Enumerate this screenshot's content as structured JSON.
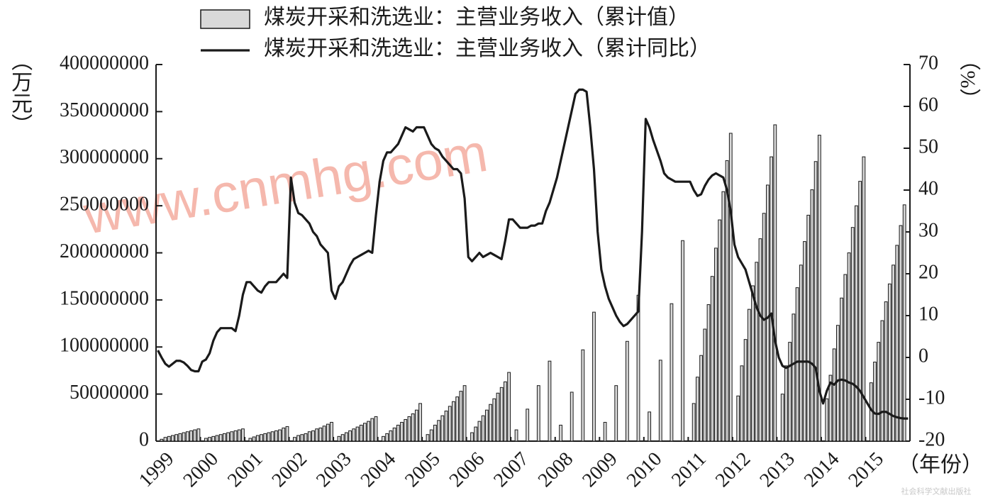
{
  "chart_data": {
    "type": "combo",
    "legend_labels_note_free": null,
    "categories": [
      "1999",
      null,
      null,
      null,
      null,
      null,
      null,
      null,
      null,
      null,
      null,
      null,
      "2000",
      null,
      null,
      null,
      null,
      null,
      null,
      null,
      null,
      null,
      null,
      null,
      "2001",
      null,
      null,
      null,
      null,
      null,
      null,
      null,
      null,
      null,
      null,
      null,
      "2002",
      null,
      null,
      null,
      null,
      null,
      null,
      null,
      null,
      null,
      null,
      null,
      "2003",
      null,
      null,
      null,
      null,
      null,
      null,
      null,
      null,
      null,
      null,
      null,
      "2004",
      null,
      null,
      null,
      null,
      null,
      null,
      null,
      null,
      null,
      null,
      null,
      "2005",
      null,
      null,
      null,
      null,
      null,
      null,
      null,
      null,
      null,
      null,
      null,
      "2006",
      null,
      null,
      null,
      null,
      null,
      null,
      null,
      null,
      null,
      null,
      null,
      "2007",
      null,
      null,
      null,
      null,
      null,
      null,
      null,
      null,
      null,
      null,
      null,
      "2008",
      null,
      null,
      null,
      null,
      null,
      null,
      null,
      null,
      null,
      null,
      null,
      "2009",
      null,
      null,
      null,
      null,
      null,
      null,
      null,
      null,
      null,
      null,
      null,
      "2010",
      null,
      null,
      null,
      null,
      null,
      null,
      null,
      null,
      null,
      null,
      null,
      "2011",
      null,
      null,
      null,
      null,
      null,
      null,
      null,
      null,
      null,
      null,
      null,
      "2012",
      null,
      null,
      null,
      null,
      null,
      null,
      null,
      null,
      null,
      null,
      null,
      "2013",
      null,
      null,
      null,
      null,
      null,
      null,
      null,
      null,
      null,
      null,
      null,
      "2014",
      null,
      null,
      null,
      null,
      null,
      null,
      null,
      null,
      null,
      null,
      null,
      "2015",
      null,
      null,
      null,
      null,
      null,
      null,
      null,
      null,
      null,
      null,
      null
    ],
    "series": [
      {
        "name": "煤炭开采和洗选业：主营业务收入（累计值）",
        "type": "bar",
        "color": "#d9d9d9",
        "values": [
          null,
          2000000.0,
          4000000.0,
          5000000.0,
          6000000.0,
          7000000.0,
          8000000.0,
          9000000.0,
          10000000.0,
          11000000.0,
          12000000.0,
          13000000.0,
          null,
          3000000.0,
          4000000.0,
          5000000.0,
          6000000.0,
          7000000.0,
          8000000.0,
          9000000.0,
          10000000.0,
          11000000.0,
          12000000.0,
          13000000.0,
          null,
          3000000.0,
          4500000.0,
          6000000.0,
          7000000.0,
          8000000.0,
          9000000.0,
          10000000.0,
          11000000.0,
          12000000.0,
          14000000.0,
          15500000.0,
          null,
          4000000.0,
          6000000.0,
          7000000.0,
          8000000.0,
          10000000.0,
          11000000.0,
          13000000.0,
          14000000.0,
          16000000.0,
          18000000.0,
          20000000.0,
          null,
          5000000.0,
          7000000.0,
          9000000.0,
          11000000.0,
          13000000.0,
          15000000.0,
          17000000.0,
          19000000.0,
          21000000.0,
          24000000.0,
          26000000.0,
          null,
          5000000.0,
          8000000.0,
          11000000.0,
          14000000.0,
          17000000.0,
          20000000.0,
          23000000.0,
          26000000.0,
          29000000.0,
          33000000.0,
          40000000.0,
          null,
          7000000.0,
          12000000.0,
          17000000.0,
          22000000.0,
          27000000.0,
          32000000.0,
          37000000.0,
          42000000.0,
          47000000.0,
          53000000.0,
          59000000.0,
          null,
          9000000.0,
          15000000.0,
          21000000.0,
          27000000.0,
          33000000.0,
          39000000.0,
          45000000.0,
          51000000.0,
          57000000.0,
          63000000.0,
          73000000.0,
          null,
          12000000.0,
          null,
          null,
          34000000.0,
          null,
          null,
          59000000.0,
          null,
          null,
          85000000.0,
          null,
          null,
          17000000.0,
          null,
          null,
          52000000.0,
          null,
          null,
          97000000.0,
          null,
          null,
          137000000.0,
          null,
          null,
          20000000.0,
          null,
          null,
          59000000.0,
          null,
          null,
          106000000.0,
          null,
          null,
          155000000.0,
          null,
          null,
          31000000.0,
          null,
          null,
          86000000.0,
          null,
          null,
          146000000.0,
          null,
          null,
          213000000.0,
          null,
          null,
          40000000.0,
          68000000.0,
          91000000.0,
          119000000.0,
          145000000.0,
          175000000.0,
          205000000.0,
          235000000.0,
          265000000.0,
          298000000.0,
          327000000.0,
          null,
          48000000.0,
          80000000.0,
          108000000.0,
          140000000.0,
          165000000.0,
          190000000.0,
          215000000.0,
          242000000.0,
          272000000.0,
          302000000.0,
          336000000.0,
          null,
          50000000.0,
          80000000.0,
          105000000.0,
          135000000.0,
          163000000.0,
          187000000.0,
          212000000.0,
          240000000.0,
          267000000.0,
          297000000.0,
          325000000.0,
          null,
          45000000.0,
          70000000.0,
          98000000.0,
          123000000.0,
          152000000.0,
          177000000.0,
          200000000.0,
          227000000.0,
          250000000.0,
          276000000.0,
          302000000.0,
          null,
          62000000.0,
          84000000.0,
          105000000.0,
          128000000.0,
          148000000.0,
          167000000.0,
          187000000.0,
          208000000.0,
          229000000.0,
          251000000.0,
          null
        ]
      },
      {
        "name": "煤炭开采和洗选业：主营业务收入（累计同比）",
        "type": "line",
        "axis": "y2",
        "color": "#1a1a1a",
        "values": [
          1.7,
          0,
          -1.5,
          -2.2,
          -1.5,
          -0.8,
          -0.8,
          -1.2,
          -2,
          -3,
          -3.3,
          -3.3,
          -1,
          -0.5,
          1,
          4,
          6,
          7,
          7,
          7,
          7,
          6.3,
          10,
          15,
          18,
          18,
          17,
          16,
          15.5,
          17,
          18,
          18,
          18,
          19,
          20,
          19,
          43,
          37,
          34.5,
          34,
          33,
          32,
          30,
          29,
          27,
          26,
          25,
          16,
          14,
          17,
          18,
          20,
          22,
          23.5,
          24,
          24.5,
          25,
          25.5,
          25,
          34,
          42,
          47,
          49,
          49,
          50,
          51,
          53,
          55,
          54.5,
          54,
          55,
          55,
          55,
          53,
          51,
          50,
          49.5,
          48,
          47,
          46,
          45,
          45,
          44,
          38,
          24,
          23,
          24,
          25,
          24,
          24.5,
          25,
          24.5,
          24,
          23.5,
          28,
          33,
          33,
          32,
          31,
          31,
          31,
          31.5,
          31.5,
          32,
          32,
          35,
          37,
          40,
          43,
          47,
          51,
          55,
          59,
          63,
          64,
          64,
          63.5,
          55,
          45,
          30,
          21,
          17,
          14,
          12,
          10,
          8.5,
          7.5,
          8,
          9,
          10,
          11,
          30,
          57,
          55,
          52,
          49.5,
          47,
          44,
          43,
          42.5,
          42,
          42,
          42,
          42,
          42,
          40,
          38.6,
          39,
          41,
          42.5,
          43.5,
          44,
          43.5,
          43,
          40,
          35,
          27,
          24,
          22.5,
          21,
          18,
          15,
          12,
          10,
          9,
          9.5,
          10.5,
          4,
          0,
          -2,
          -2.5,
          -2,
          -1.5,
          -1,
          -1,
          -1,
          -1,
          -1.5,
          -2.5,
          -8,
          -11,
          -8,
          -6,
          -6.5,
          -5.5,
          -5.3,
          -5.5,
          -6,
          -6.3,
          -7,
          -8,
          -9.5,
          -11,
          -12.5,
          -13.4,
          -13.5,
          -13,
          -13,
          -13.5,
          -14,
          -14.3,
          -14.5,
          -14.6,
          -14.6
        ]
      }
    ],
    "ylabel": "（万元）",
    "y2label": "（%）",
    "xlabel": "（年份）",
    "ylim": [
      0,
      400000000
    ],
    "yticks": [
      0,
      50000000,
      100000000,
      150000000,
      200000000,
      250000000,
      300000000,
      350000000,
      400000000
    ],
    "y2lim": [
      -20,
      70
    ],
    "y2ticks": [
      -20,
      -10,
      0,
      10,
      20,
      30,
      40,
      50,
      60,
      70
    ],
    "watermark": "www.cnmhg.com",
    "source": "社会科学文献出版社"
  }
}
